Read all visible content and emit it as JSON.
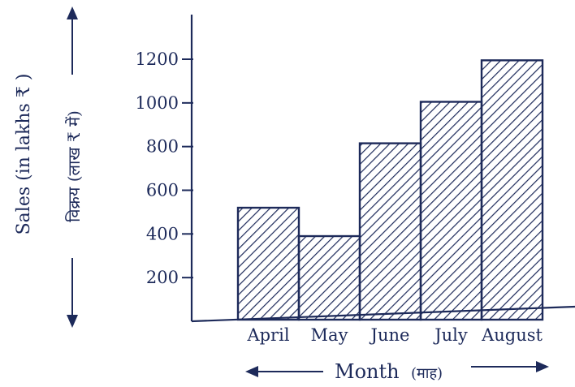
{
  "chart_data": {
    "type": "bar",
    "categories": [
      "April",
      "May",
      "June",
      "July",
      "August"
    ],
    "values": [
      520,
      390,
      815,
      1005,
      1195
    ],
    "yticks": [
      200,
      400,
      600,
      800,
      1000,
      1200
    ],
    "ylim": [
      0,
      1200
    ],
    "ylabel": "Sales (in lakhs ₹ )",
    "ylabel_hindi": "विक्रय (लाख ₹ में)",
    "xlabel": "Month",
    "xlabel_hindi": "(माह)",
    "bar_fill": "hatched",
    "grid": false
  },
  "colors": {
    "ink": "#1d2a5a",
    "background": "#ffffff"
  }
}
